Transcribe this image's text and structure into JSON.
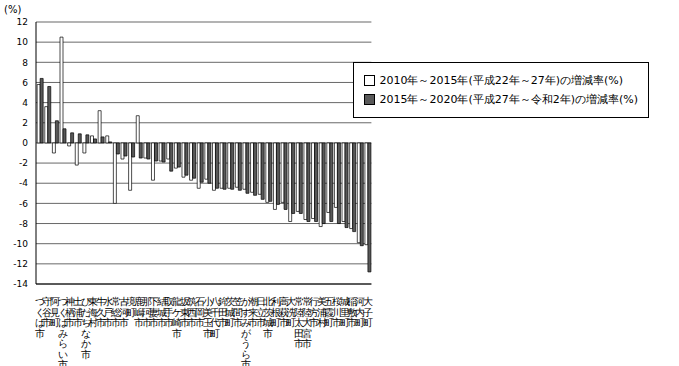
{
  "chart_data": {
    "type": "bar",
    "y_label": "(%)",
    "categories": [
      "つくば市",
      "守谷市",
      "阿見町",
      "つくばみらい市",
      "神栖市",
      "土浦市",
      "ひたちなか市",
      "東海村",
      "牛久市",
      "水戸市",
      "常総市",
      "古河市",
      "境町",
      "鹿嶋市",
      "那珂市",
      "下妻市",
      "結城市",
      "取手市",
      "龍ケ崎市",
      "坂東市",
      "筑西市",
      "石岡市",
      "小美玉市",
      "八千代町",
      "鉾田市",
      "茨城町",
      "笠間市",
      "かすみがうら市",
      "潮来市",
      "日立市",
      "北茨城市",
      "利根町",
      "高萩市",
      "大洗町",
      "常陸太田市",
      "常陸大宮市",
      "行方市",
      "美浦村",
      "五霞町",
      "桜川市",
      "城里町",
      "稲敷市",
      "河内町",
      "大子町"
    ],
    "series": [
      {
        "name": "2010年～2015年(平成22年～27年)の増減率(%)",
        "color": "#ffffff",
        "values": [
          5.8,
          3.6,
          -1.0,
          10.5,
          -0.3,
          -2.2,
          -1.0,
          0.7,
          3.2,
          0.7,
          -6.0,
          -1.6,
          -4.7,
          2.7,
          -1.5,
          -3.7,
          -1.8,
          -1.6,
          -2.5,
          -3.4,
          -3.7,
          -4.5,
          -3.6,
          -4.7,
          -4.5,
          -4.5,
          -4.4,
          -4.6,
          -4.9,
          -5.1,
          -5.9,
          -6.6,
          -5.9,
          -7.8,
          -6.8,
          -7.6,
          -7.5,
          -8.3,
          -6.9,
          -6.4,
          -7.8,
          -8.5,
          -9.9,
          -10.1
        ]
      },
      {
        "name": "2015年～2020年(平成27年～令和2年)の増減率(%)",
        "color": "#595959",
        "values": [
          6.4,
          5.6,
          2.2,
          1.4,
          1.0,
          0.9,
          0.8,
          0.4,
          0.6,
          0.1,
          -1.1,
          -1.3,
          -1.4,
          -1.5,
          -1.6,
          -1.8,
          -1.9,
          -2.8,
          -2.4,
          -3.2,
          -3.5,
          -3.9,
          -4.0,
          -4.5,
          -4.6,
          -4.6,
          -4.7,
          -5.0,
          -5.2,
          -5.6,
          -5.8,
          -6.1,
          -6.6,
          -7.0,
          -7.0,
          -7.8,
          -7.8,
          -8.0,
          -7.8,
          -8.0,
          -8.4,
          -8.8,
          -10.2,
          -12.8
        ]
      }
    ],
    "ylim": [
      -14,
      12
    ],
    "yticks": [
      -14,
      -12,
      -10,
      -8,
      -6,
      -4,
      -2,
      0,
      2,
      4,
      6,
      8,
      10,
      12
    ],
    "grid": true,
    "legend": "upper right"
  }
}
